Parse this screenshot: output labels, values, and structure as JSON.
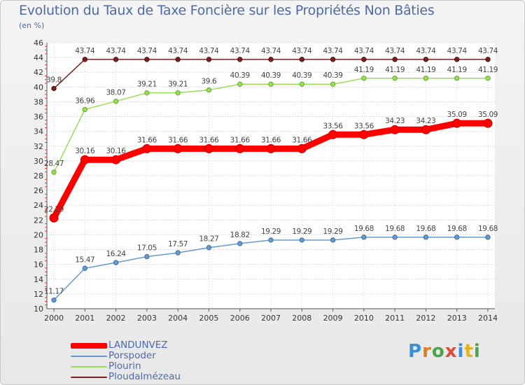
{
  "chart_title": "Evolution du Taux de Taxe Foncière sur les Propriétés Non Bâties",
  "unit_label": "(en %)",
  "logo": [
    "P",
    "r",
    "o",
    "x",
    "i",
    "t",
    "i"
  ],
  "logo_colors": [
    "#3b8fd9",
    "#e07b20",
    "#4ba34b",
    "#e04a36",
    "#3b8fd9",
    "#e0b21e",
    "#4ba34b"
  ],
  "chart_data": {
    "type": "line",
    "x": [
      "2000",
      "2001",
      "2002",
      "2003",
      "2004",
      "2005",
      "2006",
      "2007",
      "2008",
      "2009",
      "2010",
      "2011",
      "2012",
      "2013",
      "2014"
    ],
    "ylim": [
      10,
      46
    ],
    "yticks": [
      10,
      12,
      14,
      16,
      18,
      20,
      22,
      24,
      26,
      28,
      30,
      32,
      34,
      36,
      38,
      40,
      42,
      44,
      46
    ],
    "grid": "horizontal dotted",
    "legend_position": "bottom-left",
    "series": [
      {
        "name": "LANDUNVEZ",
        "color": "#ff0000",
        "labels": [
          "22.29",
          "30.16",
          "30.16",
          "31.66",
          "31.66",
          "31.66",
          "31.66",
          "31.66",
          "31.66",
          "33.56",
          "33.56",
          "34.23",
          "34.23",
          "35.09",
          "35.09"
        ],
        "values": [
          22.29,
          30.16,
          30.16,
          31.66,
          31.66,
          31.66,
          31.66,
          31.66,
          31.66,
          33.56,
          33.56,
          34.23,
          34.23,
          35.09,
          35.09
        ]
      },
      {
        "name": "Porspoder",
        "color": "#6699cc",
        "labels": [
          "11.17",
          "15.47",
          "16.24",
          "17.05",
          "17.57",
          "18.27",
          "18.82",
          "19.29",
          "19.29",
          "19.29",
          "19.68",
          "19.68",
          "19.68",
          "19.68",
          "19.68"
        ],
        "values": [
          11.17,
          15.47,
          16.24,
          17.05,
          17.57,
          18.27,
          18.82,
          19.29,
          19.29,
          19.29,
          19.68,
          19.68,
          19.68,
          19.68,
          19.68
        ]
      },
      {
        "name": "Plourin",
        "color": "#99dd55",
        "labels": [
          "28.47",
          "36.96",
          "38.07",
          "39.21",
          "39.21",
          "39.6",
          "40.39",
          "40.39",
          "40.39",
          "40.39",
          "41.19",
          "41.19",
          "41.19",
          "41.19",
          "41.19"
        ],
        "values": [
          28.47,
          36.96,
          38.07,
          39.21,
          39.21,
          39.6,
          40.39,
          40.39,
          40.39,
          40.39,
          41.19,
          41.19,
          41.19,
          41.19,
          41.19
        ]
      },
      {
        "name": "Ploudalmézeau",
        "color": "#772222",
        "labels": [
          "39.8",
          "43.74",
          "43.74",
          "43.74",
          "43.74",
          "43.74",
          "43.74",
          "43.74",
          "43.74",
          "43.74",
          "43.74",
          "43.74",
          "43.74",
          "43.74",
          "43.74"
        ],
        "values": [
          39.8,
          43.74,
          43.74,
          43.74,
          43.74,
          43.74,
          43.74,
          43.74,
          43.74,
          43.74,
          43.74,
          43.74,
          43.74,
          43.74,
          43.74
        ]
      }
    ]
  }
}
